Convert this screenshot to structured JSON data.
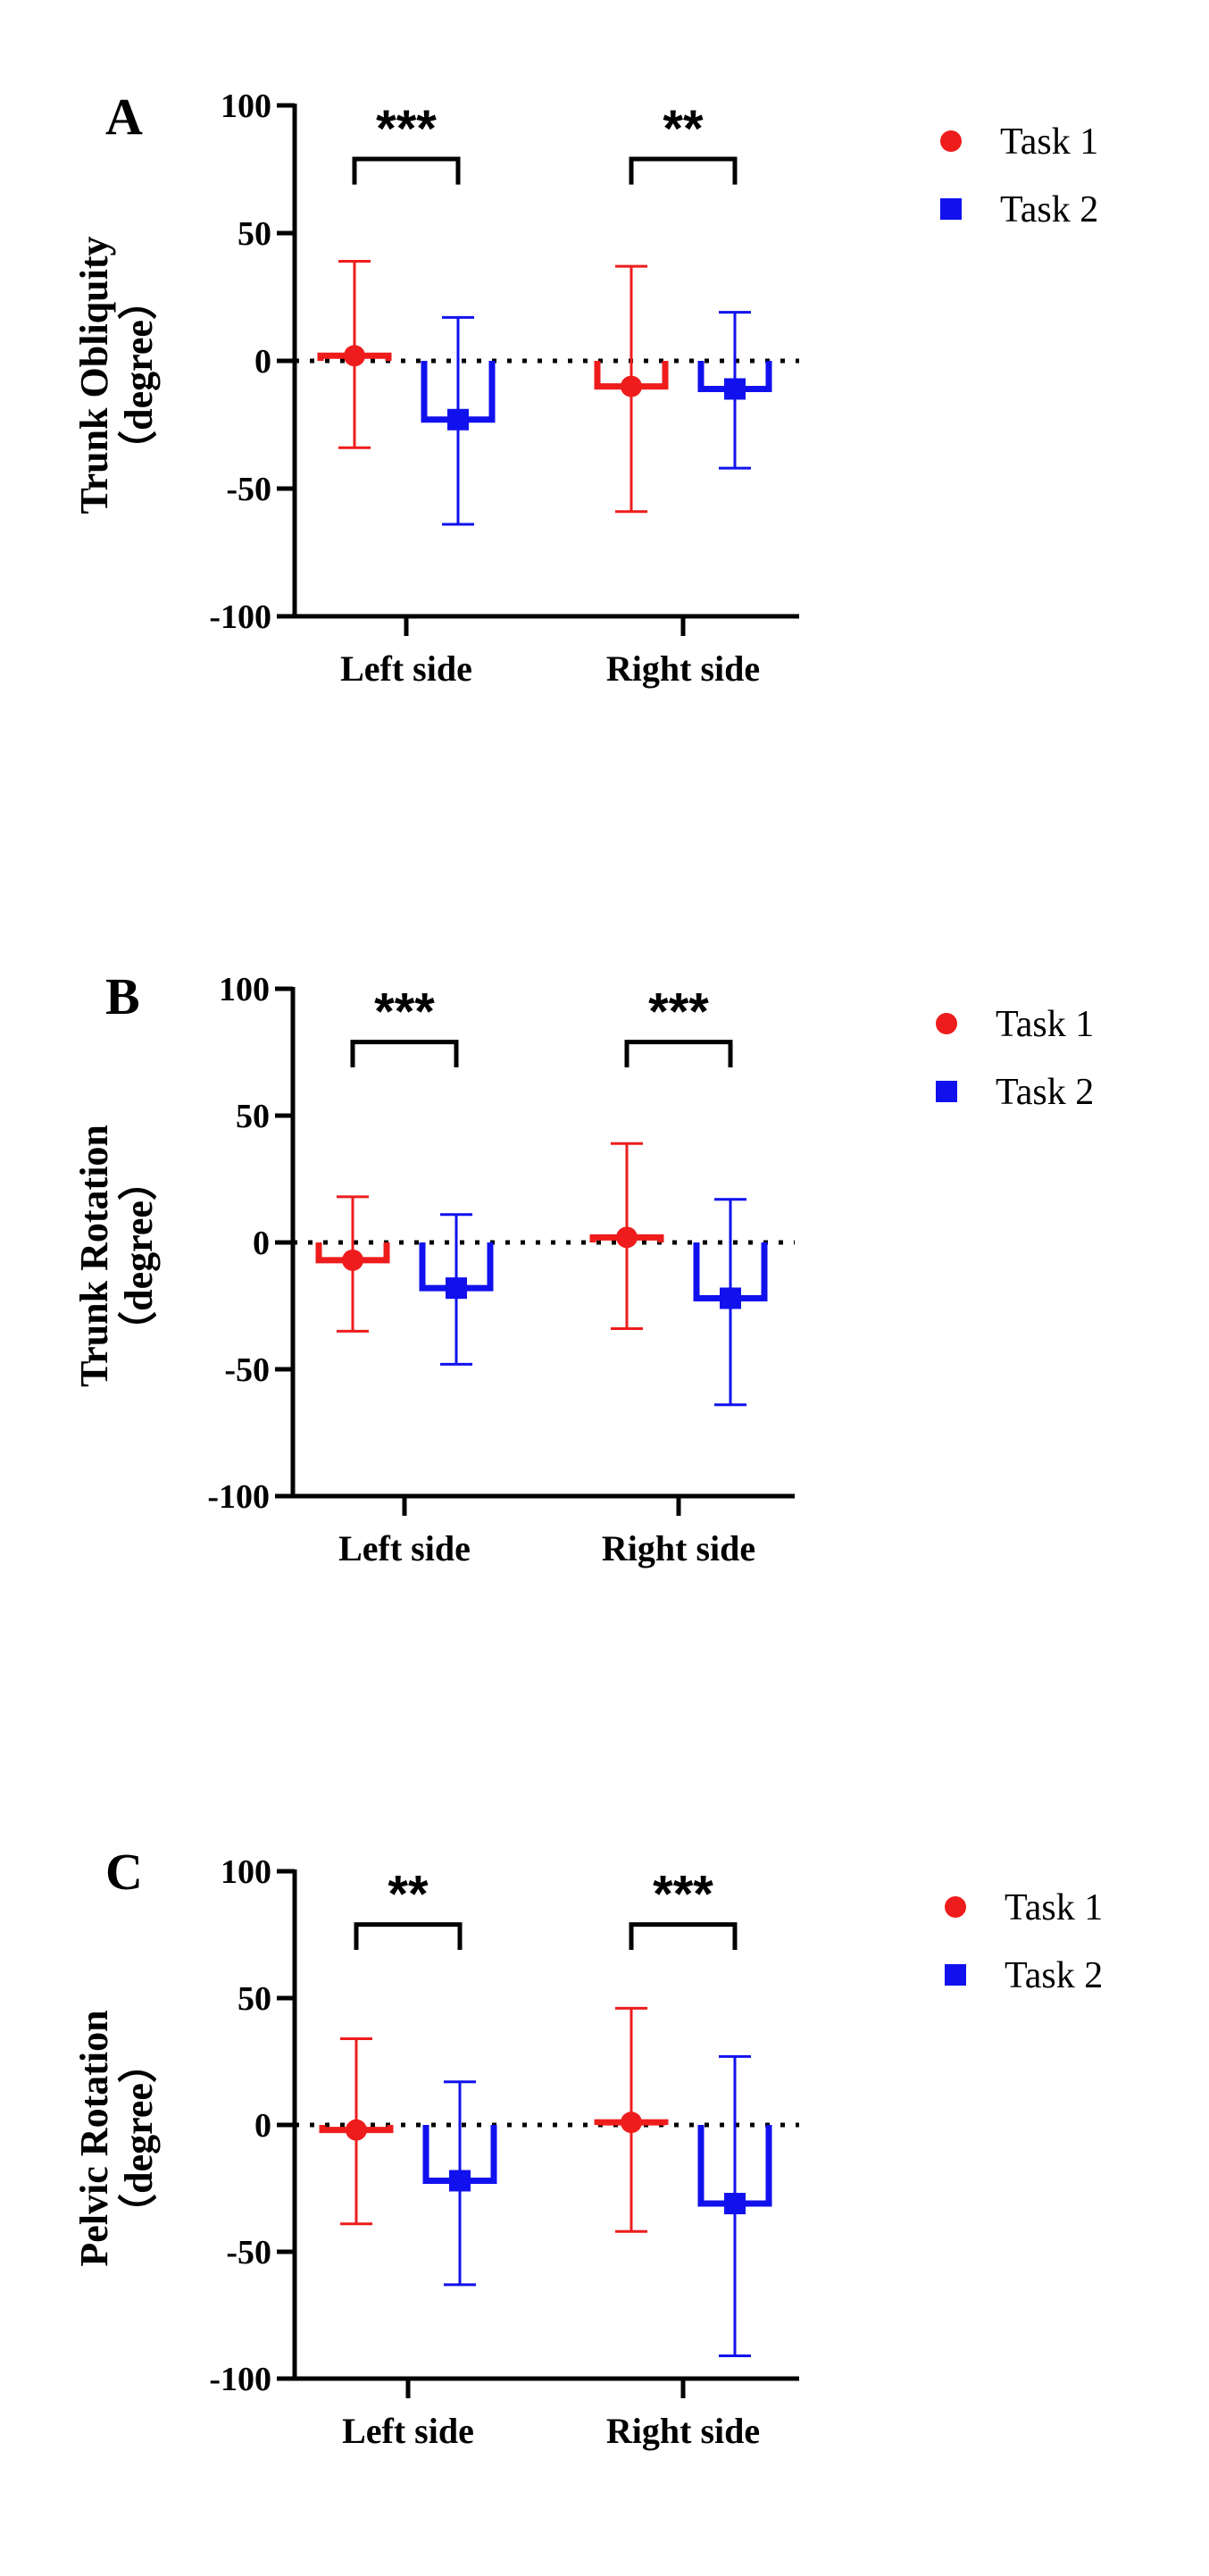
{
  "chart_data": [
    {
      "type": "bar",
      "panel": "A",
      "ylabel": "Trunk Obliquity",
      "ylabel_unit": "（degree）",
      "categories": [
        "Left side",
        "Right side"
      ],
      "ylim": [
        -100,
        100
      ],
      "yticks": [
        "100",
        "50",
        "0",
        "-50",
        "-100"
      ],
      "series": [
        {
          "name": "Task 1",
          "color": "#ee1c1c",
          "marker": "circle",
          "values": [
            2,
            -10
          ],
          "err_low": [
            -34,
            -59
          ],
          "err_high": [
            39,
            37
          ]
        },
        {
          "name": "Task 2",
          "color": "#1111ee",
          "marker": "square",
          "values": [
            -23,
            -11
          ],
          "err_low": [
            -64,
            -42
          ],
          "err_high": [
            17,
            19
          ]
        }
      ],
      "significance": [
        "***",
        "**"
      ]
    },
    {
      "type": "bar",
      "panel": "B",
      "ylabel": "Trunk Rotation",
      "ylabel_unit": "（degree）",
      "categories": [
        "Left side",
        "Right side"
      ],
      "ylim": [
        -100,
        100
      ],
      "yticks": [
        "100",
        "50",
        "0",
        "-50",
        "-100"
      ],
      "series": [
        {
          "name": "Task 1",
          "color": "#ee1c1c",
          "marker": "circle",
          "values": [
            -7,
            2
          ],
          "err_low": [
            -35,
            -34
          ],
          "err_high": [
            18,
            39
          ]
        },
        {
          "name": "Task 2",
          "color": "#1111ee",
          "marker": "square",
          "values": [
            -18,
            -22
          ],
          "err_low": [
            -48,
            -64
          ],
          "err_high": [
            11,
            17
          ]
        }
      ],
      "significance": [
        "***",
        "***"
      ]
    },
    {
      "type": "bar",
      "panel": "C",
      "ylabel": "Pelvic Rotation",
      "ylabel_unit": "（degree）",
      "categories": [
        "Left side",
        "Right side"
      ],
      "ylim": [
        -100,
        100
      ],
      "yticks": [
        "100",
        "50",
        "0",
        "-50",
        "-100"
      ],
      "series": [
        {
          "name": "Task 1",
          "color": "#ee1c1c",
          "marker": "circle",
          "values": [
            -2,
            1
          ],
          "err_low": [
            -39,
            -42
          ],
          "err_high": [
            34,
            46
          ]
        },
        {
          "name": "Task 2",
          "color": "#1111ee",
          "marker": "square",
          "values": [
            -22,
            -31
          ],
          "err_low": [
            -63,
            -91
          ],
          "err_high": [
            17,
            27
          ]
        }
      ],
      "significance": [
        "**",
        "***"
      ]
    }
  ]
}
